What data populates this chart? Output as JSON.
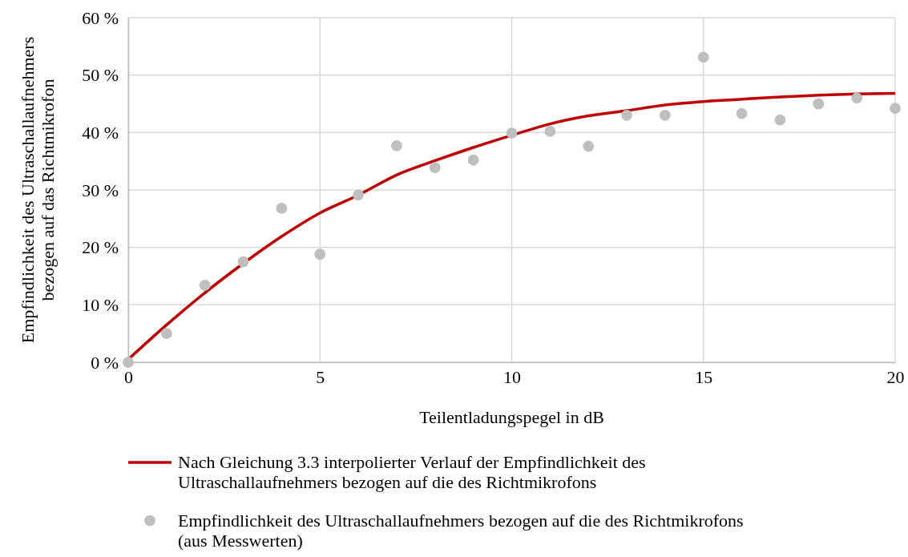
{
  "chart_data": {
    "type": "scatter",
    "xlabel": "Teilentladungspegel in dB",
    "ylabel": "Empfindlichkeit des Ultraschallaufnehmers bezogen auf das Richtmikrofon",
    "xlim": [
      0,
      20
    ],
    "xticks": [
      0,
      5,
      10,
      15,
      20
    ],
    "ylim": [
      0,
      60
    ],
    "yticks": [
      {
        "value": 0,
        "label": "0 %"
      },
      {
        "value": 10,
        "label": "10 %"
      },
      {
        "value": 20,
        "label": "20 %"
      },
      {
        "value": 30,
        "label": "30 %"
      },
      {
        "value": 40,
        "label": "40 %"
      },
      {
        "value": 50,
        "label": "50 %"
      },
      {
        "value": 60,
        "label": "60 %"
      }
    ],
    "grid": true,
    "legend": "bottom",
    "marker": "circle",
    "series": [
      {
        "type": "line",
        "name": "Nach Gleichung 3.3 interpolierter Verlauf der Empfindlichkeit des Ultraschallaufnehmers bezogen auf die des Richtmikrofons",
        "color": "#c00000",
        "line_style": "solid",
        "marker": "none",
        "x": [
          0,
          1,
          2,
          3,
          4,
          5,
          6,
          7,
          8,
          9,
          10,
          11,
          12,
          13,
          14,
          15,
          16,
          17,
          18,
          19,
          20
        ],
        "values": [
          0.5,
          6.5,
          12.1,
          17.2,
          21.9,
          26.0,
          29.1,
          32.6,
          35.1,
          37.4,
          39.5,
          41.5,
          42.9,
          43.8,
          44.8,
          45.4,
          45.8,
          46.2,
          46.5,
          46.7,
          46.8
        ]
      },
      {
        "name": "Empfindlichkeit des Ultraschallaufnehmers bezogen auf die des Richtmikrofons (aus Messwerten)",
        "color": "#bfbfbf",
        "x": [
          0,
          1,
          2,
          3,
          4,
          5,
          6,
          7,
          8,
          9,
          10,
          11,
          12,
          13,
          14,
          15,
          16,
          17,
          18,
          19,
          20
        ],
        "values": [
          0,
          5.0,
          13.4,
          17.5,
          26.8,
          18.8,
          29.1,
          37.7,
          33.9,
          35.2,
          39.9,
          40.2,
          37.6,
          43.0,
          43.0,
          53.1,
          43.3,
          42.2,
          45.0,
          46.0,
          44.2
        ]
      }
    ]
  }
}
